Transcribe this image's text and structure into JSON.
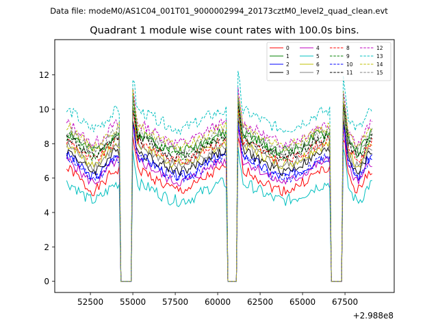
{
  "chart_data": {
    "type": "line",
    "suptitle": "Data file: modeM0/AS1C04_001T01_9000002994_20173cztM0_level2_quad_clean.evt",
    "title": "Quadrant 1 module wise count rates with 100.0s bins.",
    "xlabel": "",
    "ylabel": "",
    "x_offset_label": "+2.988e8",
    "xlim": [
      50400,
      70400
    ],
    "ylim": [
      -0.65,
      14.05
    ],
    "x_ticks": [
      52500,
      55000,
      57500,
      60000,
      62500,
      65000,
      67500
    ],
    "x_tick_labels": [
      "52500",
      "55000",
      "57500",
      "60000",
      "62500",
      "65000",
      "67500"
    ],
    "y_ticks": [
      0,
      2,
      4,
      6,
      8,
      10,
      12
    ],
    "y_tick_labels": [
      "0",
      "2",
      "4",
      "6",
      "8",
      "10",
      "12"
    ],
    "bin_seconds": 100,
    "legend_location": "upper right",
    "series": [
      {
        "name": "0",
        "color": "#ff0000",
        "dash": "solid",
        "level": 5.9,
        "rise": 0.6,
        "amp": 0.32,
        "seed": 1
      },
      {
        "name": "1",
        "color": "#008000",
        "dash": "solid",
        "level": 8.1,
        "rise": 0.5,
        "amp": 0.32,
        "seed": 2
      },
      {
        "name": "2",
        "color": "#0000ff",
        "dash": "solid",
        "level": 6.7,
        "rise": 0.6,
        "amp": 0.32,
        "seed": 3
      },
      {
        "name": "3",
        "color": "#000000",
        "dash": "solid",
        "level": 7.0,
        "rise": 0.55,
        "amp": 0.3,
        "seed": 4
      },
      {
        "name": "4",
        "color": "#bf00bf",
        "dash": "solid",
        "level": 6.4,
        "rise": 0.6,
        "amp": 0.3,
        "seed": 5
      },
      {
        "name": "5",
        "color": "#00bfbf",
        "dash": "solid",
        "level": 5.2,
        "rise": 0.5,
        "amp": 0.35,
        "seed": 6
      },
      {
        "name": "6",
        "color": "#bfbf00",
        "dash": "solid",
        "level": 7.4,
        "rise": 0.55,
        "amp": 0.3,
        "seed": 7
      },
      {
        "name": "7",
        "color": "#808080",
        "dash": "solid",
        "level": 7.3,
        "rise": 0.55,
        "amp": 0.3,
        "seed": 8
      },
      {
        "name": "8",
        "color": "#ff0000",
        "dash": "dashed",
        "level": 7.6,
        "rise": 0.55,
        "amp": 0.3,
        "seed": 9
      },
      {
        "name": "9",
        "color": "#008000",
        "dash": "dashed",
        "level": 7.9,
        "rise": 0.55,
        "amp": 0.32,
        "seed": 10
      },
      {
        "name": "10",
        "color": "#0000ff",
        "dash": "dashed",
        "level": 6.6,
        "rise": 0.6,
        "amp": 0.3,
        "seed": 11
      },
      {
        "name": "11",
        "color": "#000000",
        "dash": "dashed",
        "level": 7.8,
        "rise": 0.55,
        "amp": 0.3,
        "seed": 12
      },
      {
        "name": "12",
        "color": "#bf00bf",
        "dash": "dashed",
        "level": 8.6,
        "rise": 0.55,
        "amp": 0.32,
        "seed": 13
      },
      {
        "name": "13",
        "color": "#00bfbf",
        "dash": "dashed",
        "level": 9.4,
        "rise": 0.5,
        "amp": 0.35,
        "seed": 14
      },
      {
        "name": "14",
        "color": "#bfbf00",
        "dash": "dashed",
        "level": 8.4,
        "rise": 0.55,
        "amp": 0.3,
        "seed": 15
      },
      {
        "name": "15",
        "color": "#808080",
        "dash": "dashed",
        "level": 8.2,
        "rise": 0.55,
        "amp": 0.3,
        "seed": 16
      }
    ],
    "segments": [
      {
        "start": 51100,
        "end": 54200
      },
      {
        "start": 55000,
        "end": 60500
      },
      {
        "start": 61200,
        "end": 66600
      },
      {
        "start": 67400,
        "end": 69100
      }
    ],
    "gaps": [
      {
        "start": 54300,
        "end": 54950
      },
      {
        "start": 60600,
        "end": 61150
      },
      {
        "start": 66700,
        "end": 67350
      }
    ]
  }
}
